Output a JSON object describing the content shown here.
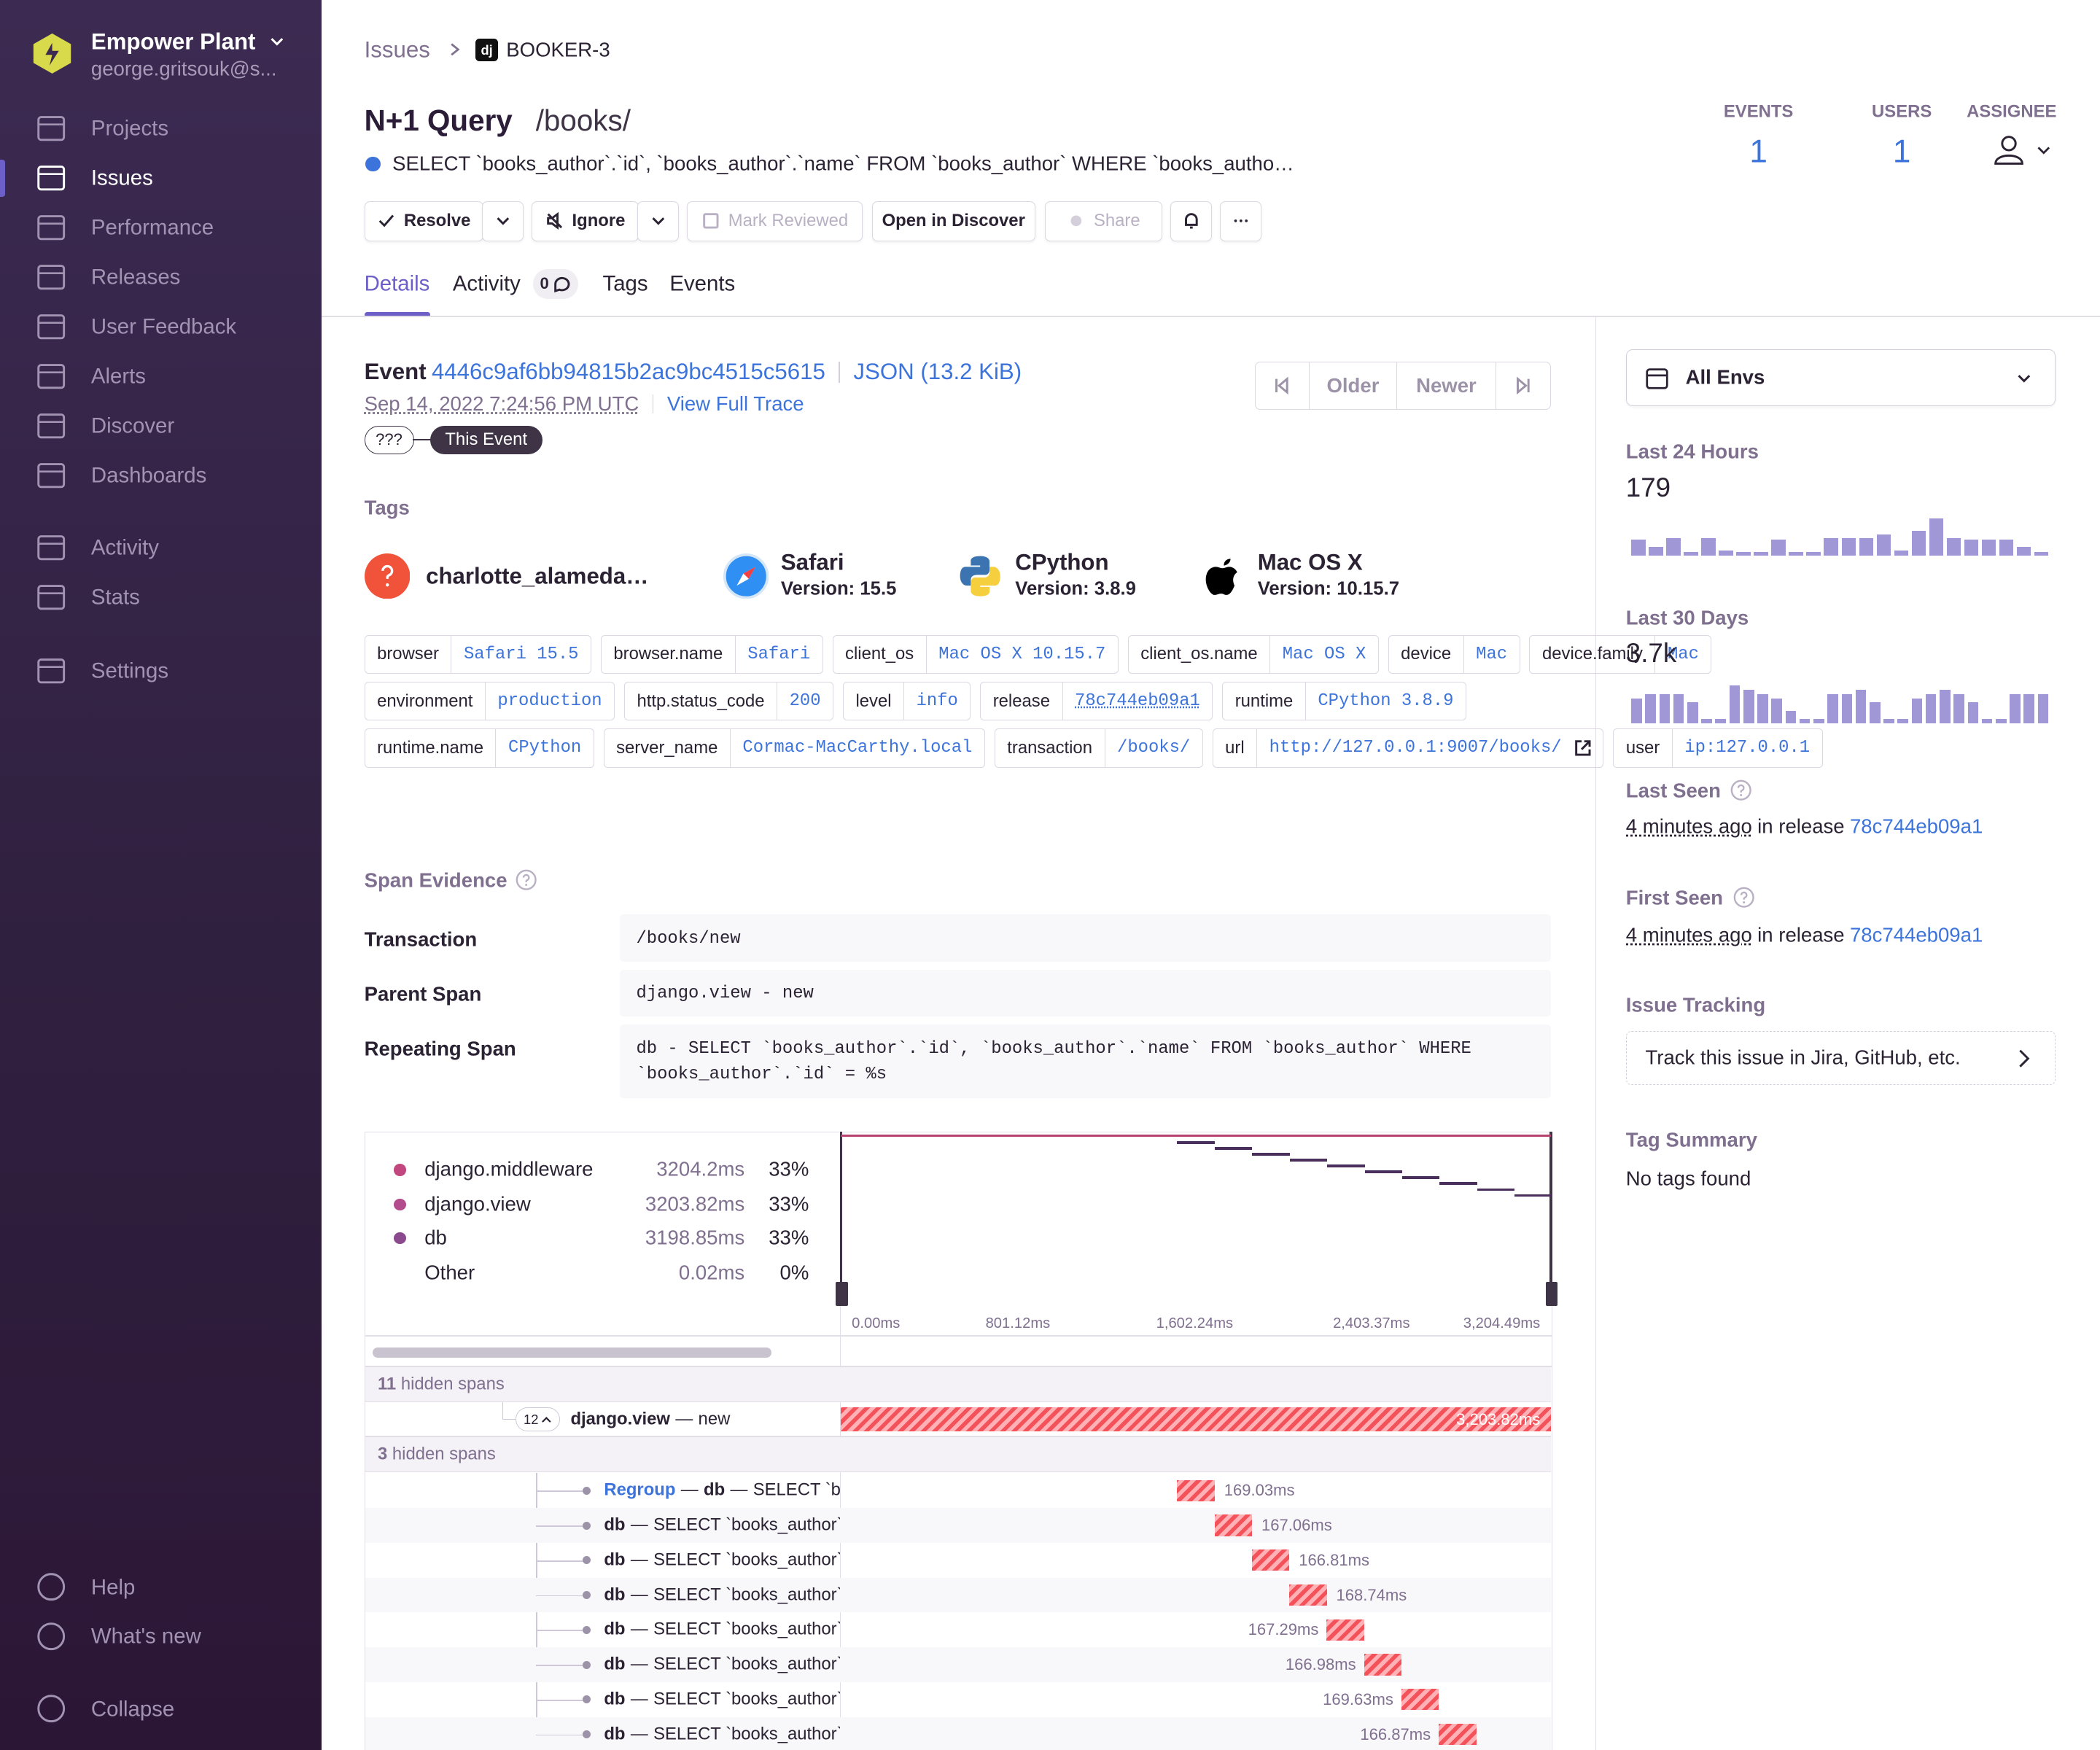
{
  "sidebar": {
    "org": "Empower Plant",
    "user": "george.gritsouk@s...",
    "nav": [
      {
        "label": "Projects"
      },
      {
        "label": "Issues",
        "active": true
      },
      {
        "label": "Performance"
      },
      {
        "label": "Releases"
      },
      {
        "label": "User Feedback"
      },
      {
        "label": "Alerts"
      },
      {
        "label": "Discover"
      },
      {
        "label": "Dashboards"
      },
      {
        "label": "Activity"
      },
      {
        "label": "Stats"
      },
      {
        "label": "Settings"
      }
    ],
    "bottom": [
      "Help",
      "What's new",
      "Collapse"
    ]
  },
  "header": {
    "breadcrumb": "Issues",
    "platform": "dj",
    "issue_id": "BOOKER-3",
    "title": "N+1 Query",
    "path": "/books/",
    "message": "SELECT `books_author`.`id`, `books_author`.`name` FROM `books_author` WHERE `books_autho…",
    "stats": [
      {
        "label": "EVENTS",
        "value": 1
      },
      {
        "label": "USERS",
        "value": 1
      }
    ],
    "assignee": "ASSIGNEE",
    "actions": [
      "Resolve",
      "Ignore",
      "Mark Reviewed",
      "Open in Discover",
      "Share"
    ],
    "tabs": [
      "Details",
      "Activity",
      "Tags",
      "Events"
    ],
    "activity_count": 0
  },
  "event": {
    "label": "Event",
    "id": "4446c9af6bb94815b2ac9bc4515c5615",
    "json": "JSON (13.2 KiB)",
    "date": "Sep 14, 2022 7:24:56 PM UTC",
    "trace": "View Full Trace",
    "badges": [
      "???",
      "This Event"
    ],
    "nav": [
      "Older",
      "Newer"
    ]
  },
  "tags": {
    "title": "Tags",
    "summary": [
      {
        "name": "charlotte_alameda…"
      },
      {
        "name": "Safari",
        "detail": "Version: 15.5"
      },
      {
        "name": "CPython",
        "detail": "Version: 3.8.9"
      },
      {
        "name": "Mac OS X",
        "detail": "Version: 10.15.7"
      }
    ],
    "pills": [
      [
        "browser",
        "Safari 15.5"
      ],
      [
        "browser.name",
        "Safari"
      ],
      [
        "client_os",
        "Mac OS X 10.15.7"
      ],
      [
        "client_os.name",
        "Mac OS X"
      ],
      [
        "device",
        "Mac"
      ],
      [
        "device.family",
        "Mac"
      ],
      [
        "environment",
        "production"
      ],
      [
        "http.status_code",
        "200"
      ],
      [
        "level",
        "info"
      ],
      [
        "release",
        "78c744eb09a1"
      ],
      [
        "runtime",
        "CPython 3.8.9"
      ],
      [
        "runtime.name",
        "CPython"
      ],
      [
        "server_name",
        "Cormac-MacCarthy.local"
      ],
      [
        "transaction",
        "/books/"
      ],
      [
        "url",
        "http://127.0.0.1:9007/books/"
      ],
      [
        "user",
        "ip:127.0.0.1"
      ]
    ]
  },
  "span_evidence": {
    "title": "Span Evidence",
    "rows": [
      [
        "Transaction",
        "/books/new"
      ],
      [
        "Parent Span",
        "django.view - new"
      ],
      [
        "Repeating Span",
        "db - SELECT `books_author`.`id`, `books_author`.`name` FROM `books_author` WHERE `books_author`.`id` = %s"
      ]
    ]
  },
  "breakdown": {
    "rows": [
      {
        "name": "django.middleware",
        "duration": "3204.2ms",
        "pct": "33%",
        "color": "#c2477e"
      },
      {
        "name": "django.view",
        "duration": "3203.82ms",
        "pct": "33%",
        "color": "#b34c8c"
      },
      {
        "name": "db",
        "duration": "3198.85ms",
        "pct": "33%",
        "color": "#8b4a8e"
      },
      {
        "name": "Other",
        "duration": "0.02ms",
        "pct": "0%"
      }
    ],
    "axis": [
      "0.00ms",
      "801.12ms",
      "1,602.24ms",
      "2,403.37ms",
      "3,204.49ms"
    ]
  },
  "waterfall": {
    "hidden_top": {
      "count": "11",
      "text": "hidden spans"
    },
    "parent": {
      "count": "12",
      "op": "django.view",
      "desc": "new",
      "duration": "3,203.82ms"
    },
    "hidden_mid": {
      "count": "3",
      "text": "hidden spans"
    },
    "separator": "—",
    "regroup": "Regroup",
    "spans": [
      {
        "op": "db",
        "desc": "SELECT `books_author`",
        "duration": "169.03ms"
      },
      {
        "op": "db",
        "desc": "SELECT `books_author`",
        "duration": "167.06ms"
      },
      {
        "op": "db",
        "desc": "SELECT `books_author`",
        "duration": "166.81ms"
      },
      {
        "op": "db",
        "desc": "SELECT `books_author`",
        "duration": "168.74ms"
      },
      {
        "op": "db",
        "desc": "SELECT `books_author`",
        "duration": "167.29ms"
      },
      {
        "op": "db",
        "desc": "SELECT `books_author`",
        "duration": "166.98ms"
      },
      {
        "op": "db",
        "desc": "SELECT `books_author`",
        "duration": "169.63ms"
      },
      {
        "op": "db",
        "desc": "SELECT `books_author`",
        "duration": "166.87ms"
      }
    ]
  },
  "side": {
    "env": "All Envs",
    "last24": {
      "title": "Last 24 Hours",
      "total": "179",
      "bar_color": "#a097d6",
      "values": [
        9,
        5,
        10,
        2,
        10,
        3,
        2,
        2,
        9,
        2,
        2,
        10,
        10,
        10,
        12,
        3,
        14,
        21,
        10,
        9,
        9,
        9,
        5,
        2
      ]
    },
    "last30": {
      "title": "Last 30 Days",
      "total": "3.7k",
      "bar_color": "#a097d6",
      "values": [
        144,
        168,
        168,
        168,
        120,
        24,
        24,
        216,
        192,
        168,
        144,
        72,
        24,
        24,
        168,
        168,
        192,
        120,
        24,
        24,
        144,
        168,
        192,
        168,
        120,
        24,
        24,
        168,
        168,
        168
      ]
    },
    "last_seen": {
      "title": "Last Seen",
      "ago": "4 minutes ago",
      "in_release": "in release",
      "release": "78c744eb09a1"
    },
    "first_seen": {
      "title": "First Seen",
      "ago": "4 minutes ago",
      "in_release": "in release",
      "release": "78c744eb09a1"
    },
    "issue_tracking": {
      "title": "Issue Tracking",
      "cta": "Track this issue in Jira, GitHub, etc."
    },
    "tag_summary": {
      "title": "Tag Summary",
      "empty": "No tags found"
    }
  }
}
